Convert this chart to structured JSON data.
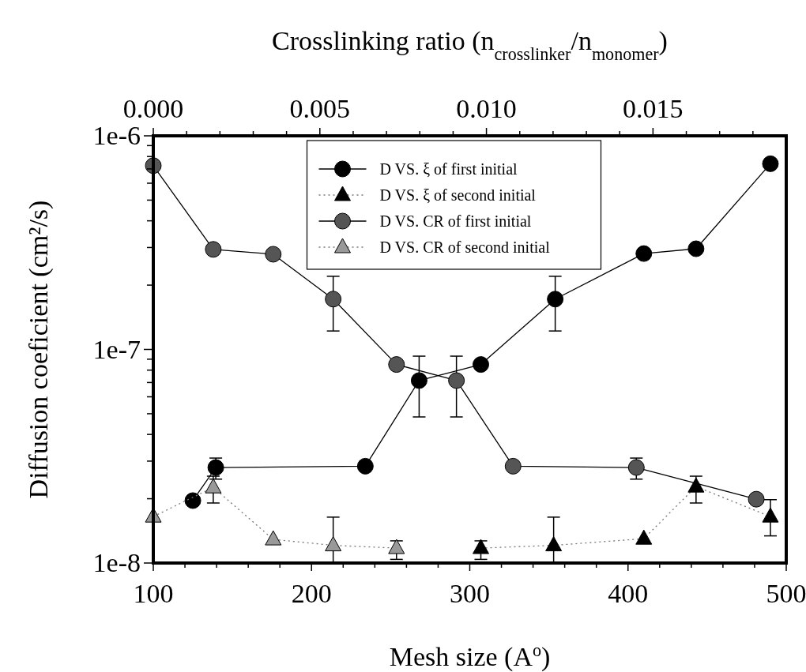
{
  "chart_data": {
    "type": "line",
    "xlabel": "Mesh size (A$^{o}$)",
    "x2label": "Crosslinking ratio (n$_{crosslinker}$/n$_{monomer}$)",
    "ylabel": "Diffusion coeficient (cm²/s)",
    "log": "y",
    "xlim": [
      100,
      500
    ],
    "xticks": [
      100,
      {
        "value": 120,
        "label": null
      },
      {
        "value": 140,
        "label": null
      },
      {
        "value": 160,
        "label": null
      },
      {
        "value": 180,
        "label": null
      },
      200,
      {
        "value": 220,
        "label": null
      },
      {
        "value": 240,
        "label": null
      },
      {
        "value": 260,
        "label": null
      },
      {
        "value": 280,
        "label": null
      },
      300,
      {
        "value": 320,
        "label": null
      },
      {
        "value": 340,
        "label": null
      },
      {
        "value": 360,
        "label": null
      },
      {
        "value": 380,
        "label": null
      },
      400,
      {
        "value": 420,
        "label": null
      },
      {
        "value": 440,
        "label": null
      },
      {
        "value": 460,
        "label": null
      },
      {
        "value": 480,
        "label": null
      },
      500
    ],
    "x2lim": [
      0,
      0.019
    ],
    "x2ticks": [
      {
        "value": 0,
        "label": "0.000"
      },
      {
        "value": 0.001,
        "label": null
      },
      {
        "value": 0.002,
        "label": null
      },
      {
        "value": 0.003,
        "label": null
      },
      {
        "value": 0.004,
        "label": null
      },
      {
        "value": 0.005,
        "label": "0.005"
      },
      {
        "value": 0.006,
        "label": null
      },
      {
        "value": 0.007,
        "label": null
      },
      {
        "value": 0.008,
        "label": null
      },
      {
        "value": 0.009,
        "label": null
      },
      {
        "value": 0.01,
        "label": "0.010"
      },
      {
        "value": 0.011,
        "label": null
      },
      {
        "value": 0.012,
        "label": null
      },
      {
        "value": 0.013,
        "label": null
      },
      {
        "value": 0.014,
        "label": null
      },
      {
        "value": 0.015,
        "label": "0.015"
      },
      {
        "value": 0.016,
        "label": null
      },
      {
        "value": 0.017,
        "label": null
      },
      {
        "value": 0.018,
        "label": null
      }
    ],
    "ylim": [
      1e-08,
      1e-06
    ],
    "yticks": [
      {
        "value": 1e-08,
        "label": "1e-8"
      },
      {
        "value": 2e-08,
        "label": null
      },
      {
        "value": 3e-08,
        "label": null
      },
      {
        "value": 4e-08,
        "label": null
      },
      {
        "value": 5e-08,
        "label": null
      },
      {
        "value": 6e-08,
        "label": null
      },
      {
        "value": 7e-08,
        "label": null
      },
      {
        "value": 8e-08,
        "label": null
      },
      {
        "value": 9e-08,
        "label": null
      },
      {
        "value": 1e-07,
        "label": "1e-7"
      },
      {
        "value": 2e-07,
        "label": null
      },
      {
        "value": 3e-07,
        "label": null
      },
      {
        "value": 4e-07,
        "label": null
      },
      {
        "value": 5e-07,
        "label": null
      },
      {
        "value": 6e-07,
        "label": null
      },
      {
        "value": 7e-07,
        "label": null
      },
      {
        "value": 8e-07,
        "label": null
      },
      {
        "value": 9e-07,
        "label": null
      },
      {
        "value": 1e-06,
        "label": "1e-6"
      }
    ],
    "grid": false,
    "legend": "top",
    "series": [
      {
        "name": "D VS. ξ of first initial",
        "color": "#000000",
        "marker": "circle",
        "line_style": "solid",
        "x": [
          125,
          139.5,
          234,
          268,
          307,
          354,
          410,
          443,
          490
        ],
        "values": [
          1.96e-08,
          2.8e-08,
          2.84e-08,
          7.15e-08,
          8.5e-08,
          1.72e-07,
          2.81e-07,
          2.96e-07,
          7.4e-07
        ],
        "errors": [
          null,
          [
            2.47e-08,
            3.1e-08
          ],
          null,
          [
            4.83e-08,
            9.3e-08
          ],
          null,
          [
            1.22e-07,
            2.2e-07
          ],
          null,
          null,
          null
        ]
      },
      {
        "name": "D VS. ξ of second initial",
        "color": "#000000",
        "marker": "triangle",
        "line_style": "dotted",
        "x": [
          307,
          353,
          410,
          443,
          490
        ],
        "values": [
          1.175e-08,
          1.21e-08,
          1.3e-08,
          2.28e-08,
          1.65e-08
        ],
        "errors": [
          [
            1.04e-08,
            1.27e-08
          ],
          [
            1e-08,
            1.64e-08
          ],
          null,
          [
            1.91e-08,
            2.55e-08
          ],
          [
            1.34e-08,
            1.98e-08
          ]
        ]
      },
      {
        "name": "D VS. CR of first initial",
        "color": "#555555",
        "marker": "circle",
        "line_style": "solid",
        "axis": "x2",
        "x": [
          0,
          0.0018,
          0.0036,
          0.0054,
          0.0073,
          0.0091,
          0.0108,
          0.0145,
          0.0181
        ],
        "values": [
          7.25e-07,
          2.94e-07,
          2.79e-07,
          1.72e-07,
          8.5e-08,
          7.15e-08,
          2.84e-08,
          2.8e-08,
          1.99e-08
        ],
        "errors": [
          null,
          null,
          null,
          [
            1.22e-07,
            2.2e-07
          ],
          null,
          [
            4.83e-08,
            9.3e-08
          ],
          null,
          [
            2.47e-08,
            3.1e-08
          ],
          null
        ]
      },
      {
        "name": "D VS. CR of second initial",
        "color": "#999999",
        "marker": "triangle",
        "line_style": "dotted",
        "axis": "x2",
        "x": [
          0,
          0.0018,
          0.0036,
          0.0054,
          0.0073
        ],
        "values": [
          1.65e-08,
          2.26e-08,
          1.29e-08,
          1.21e-08,
          1.175e-08
        ],
        "errors": [
          null,
          [
            1.91e-08,
            2.55e-08
          ],
          null,
          [
            1e-08,
            1.64e-08
          ],
          [
            1.04e-08,
            1.27e-08
          ]
        ]
      }
    ]
  }
}
